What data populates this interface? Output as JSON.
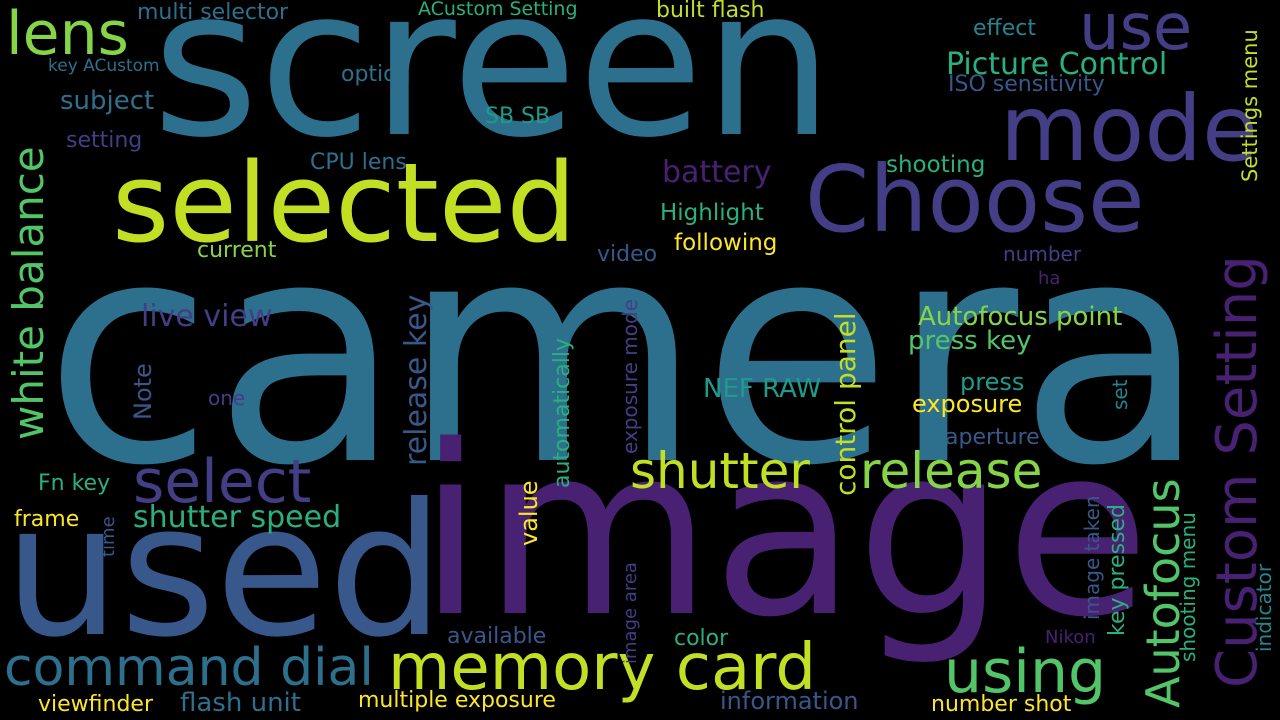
{
  "background": "#000000",
  "palette": {
    "yellow": "#fde725",
    "lime": "#c2df23",
    "light_green": "#86d549",
    "green": "#52c569",
    "sea": "#2ab07f",
    "teal": "#1e9b8a",
    "steel": "#25858e",
    "cyan_blue": "#2d708e",
    "blue": "#38588c",
    "indigo": "#433e85",
    "purple": "#482173",
    "deep_purple": "#440154"
  },
  "words": [
    {
      "text": "camera",
      "color": "#2d708e"
    },
    {
      "text": "screen",
      "color": "#2d708e"
    },
    {
      "text": "image",
      "color": "#482173"
    },
    {
      "text": "used",
      "color": "#38588c"
    },
    {
      "text": "selected",
      "color": "#c2df23"
    },
    {
      "text": "Choose",
      "color": "#433e85"
    },
    {
      "text": "mode",
      "color": "#433e85"
    },
    {
      "text": "use",
      "color": "#433e85"
    },
    {
      "text": "lens",
      "color": "#86d549"
    },
    {
      "text": "memory card",
      "color": "#c2df23"
    },
    {
      "text": "command dial",
      "color": "#2d708e"
    },
    {
      "text": "using",
      "color": "#52c569"
    },
    {
      "text": "select",
      "color": "#433e85"
    },
    {
      "text": "shutter",
      "color": "#c2df23"
    },
    {
      "text": "release",
      "color": "#86d549"
    },
    {
      "text": "Custom Setting",
      "color": "#482173"
    },
    {
      "text": "Autofocus",
      "color": "#52c569"
    },
    {
      "text": "white balance",
      "color": "#52c569"
    },
    {
      "text": "Picture Control",
      "color": "#2ab07f"
    },
    {
      "text": "shutter speed",
      "color": "#2ab07f"
    },
    {
      "text": "live view",
      "color": "#433e85"
    },
    {
      "text": "Autofocus point",
      "color": "#86d549"
    },
    {
      "text": "battery",
      "color": "#482173"
    },
    {
      "text": "release key",
      "color": "#38588c"
    },
    {
      "text": "control panel",
      "color": "#c2df23"
    },
    {
      "text": "press key",
      "color": "#52c569"
    },
    {
      "text": "NEF RAW",
      "color": "#1e9b8a"
    },
    {
      "text": "press",
      "color": "#1e9b8a"
    },
    {
      "text": "exposure",
      "color": "#fde725"
    },
    {
      "text": "Highlight",
      "color": "#2ab07f"
    },
    {
      "text": "following",
      "color": "#fde725"
    },
    {
      "text": "shooting",
      "color": "#2ab07f"
    },
    {
      "text": "subject",
      "color": "#2d708e"
    },
    {
      "text": "option",
      "color": "#2d708e"
    },
    {
      "text": "setting",
      "color": "#433e85"
    },
    {
      "text": "multi selector",
      "color": "#2d708e"
    },
    {
      "text": "key ACustom",
      "color": "#2d708e"
    },
    {
      "text": "ACustom Setting",
      "color": "#2ab07f"
    },
    {
      "text": "built flash",
      "color": "#c2df23"
    },
    {
      "text": "effect",
      "color": "#25858e"
    },
    {
      "text": "ISO sensitivity",
      "color": "#38588c"
    },
    {
      "text": "Settings menu",
      "color": "#c2df23"
    },
    {
      "text": "SB SB",
      "color": "#1e9b8a"
    },
    {
      "text": "CPU lens",
      "color": "#2d708e"
    },
    {
      "text": "current",
      "color": "#86d549"
    },
    {
      "text": "video",
      "color": "#38588c"
    },
    {
      "text": "number",
      "color": "#433e85"
    },
    {
      "text": "ha",
      "color": "#482173"
    },
    {
      "text": "Note",
      "color": "#38588c"
    },
    {
      "text": "one",
      "color": "#433e85"
    },
    {
      "text": "Fn key",
      "color": "#2ab07f"
    },
    {
      "text": "frame",
      "color": "#fde725"
    },
    {
      "text": "time",
      "color": "#38588c"
    },
    {
      "text": "value",
      "color": "#fde725"
    },
    {
      "text": "automatically",
      "color": "#2ab07f"
    },
    {
      "text": "exposure mode",
      "color": "#433e85"
    },
    {
      "text": "aperture",
      "color": "#38588c"
    },
    {
      "text": "set",
      "color": "#25858e"
    },
    {
      "text": "image taken",
      "color": "#38588c"
    },
    {
      "text": "key pressed",
      "color": "#2ab07f"
    },
    {
      "text": "shooting menu",
      "color": "#2ab07f"
    },
    {
      "text": "indicator",
      "color": "#25858e"
    },
    {
      "text": "image area",
      "color": "#433e85"
    },
    {
      "text": "available",
      "color": "#38588c"
    },
    {
      "text": "color",
      "color": "#2ab07f"
    },
    {
      "text": "Nikon",
      "color": "#482173"
    },
    {
      "text": "viewfinder",
      "color": "#fde725"
    },
    {
      "text": "flash unit",
      "color": "#2d708e"
    },
    {
      "text": "multiple exposure",
      "color": "#fde725"
    },
    {
      "text": "information",
      "color": "#38588c"
    },
    {
      "text": "number shot",
      "color": "#fde725"
    }
  ]
}
